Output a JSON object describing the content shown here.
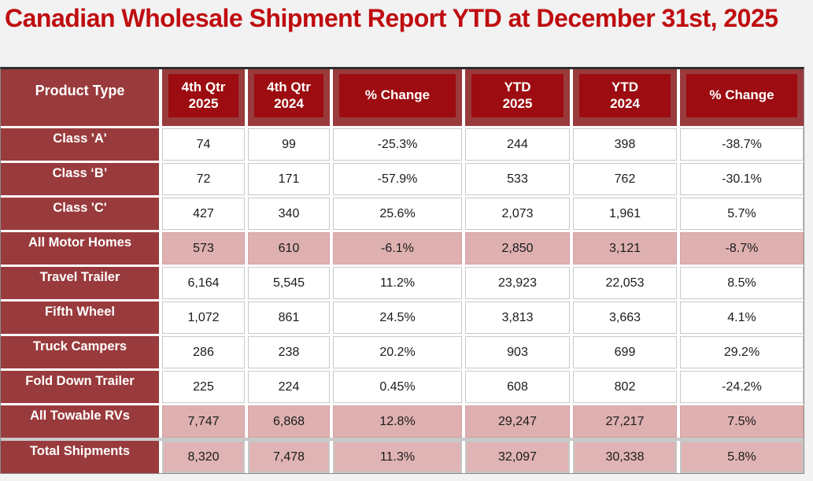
{
  "title": "Canadian Wholesale Shipment Report YTD at December 31st, 2025",
  "colors": {
    "title_red": "#bf0d10",
    "header_maroon": "#993a3c",
    "header_box_dark_red": "#9c0c10",
    "highlight_pink": "#dfb0b0",
    "gridline_gray": "#c9c9c9",
    "page_background": "#f2f2f2",
    "data_text": "#1b1b1b",
    "header_text": "#ffffff"
  },
  "table": {
    "header": [
      {
        "line1": "Product Type",
        "line2": ""
      },
      {
        "line1": "4th Qtr",
        "line2": "2025"
      },
      {
        "line1": "4th Qtr",
        "line2": "2024"
      },
      {
        "line1": "% Change",
        "line2": ""
      },
      {
        "line1": "YTD",
        "line2": "2025"
      },
      {
        "line1": "YTD",
        "line2": "2024"
      },
      {
        "line1": "% Change",
        "line2": ""
      }
    ],
    "rows": [
      {
        "label": "Class 'A'",
        "values": [
          "74",
          "99",
          "-25.3%",
          "244",
          "398",
          "-38.7%"
        ],
        "style": "plain"
      },
      {
        "label": "Class ‘B’",
        "values": [
          "72",
          "171",
          "-57.9%",
          "533",
          "762",
          "-30.1%"
        ],
        "style": "plain"
      },
      {
        "label": "Class 'C'",
        "values": [
          "427",
          "340",
          "25.6%",
          "2,073",
          "1,961",
          "5.7%"
        ],
        "style": "plain"
      },
      {
        "label": "All Motor Homes",
        "values": [
          "573",
          "610",
          "-6.1%",
          "2,850",
          "3,121",
          "-8.7%"
        ],
        "style": "pink"
      },
      {
        "label": "Travel Trailer",
        "values": [
          "6,164",
          "5,545",
          "11.2%",
          "23,923",
          "22,053",
          "8.5%"
        ],
        "style": "plain"
      },
      {
        "label": "Fifth Wheel",
        "values": [
          "1,072",
          "861",
          "24.5%",
          "3,813",
          "3,663",
          "4.1%"
        ],
        "style": "plain"
      },
      {
        "label": "Truck Campers",
        "values": [
          "286",
          "238",
          "20.2%",
          "903",
          "699",
          "29.2%"
        ],
        "style": "plain"
      },
      {
        "label": "Fold Down Trailer",
        "values": [
          "225",
          "224",
          "0.45%",
          "608",
          "802",
          "-24.2%"
        ],
        "style": "plain"
      },
      {
        "label": "All Towable RVs",
        "values": [
          "7,747",
          "6,868",
          "12.8%",
          "29,247",
          "27,217",
          "7.5%"
        ],
        "style": "pink"
      },
      {
        "label": "Total Shipments",
        "values": [
          "8,320",
          "7,478",
          "11.3%",
          "32,097",
          "30,338",
          "5.8%"
        ],
        "style": "total"
      }
    ]
  }
}
